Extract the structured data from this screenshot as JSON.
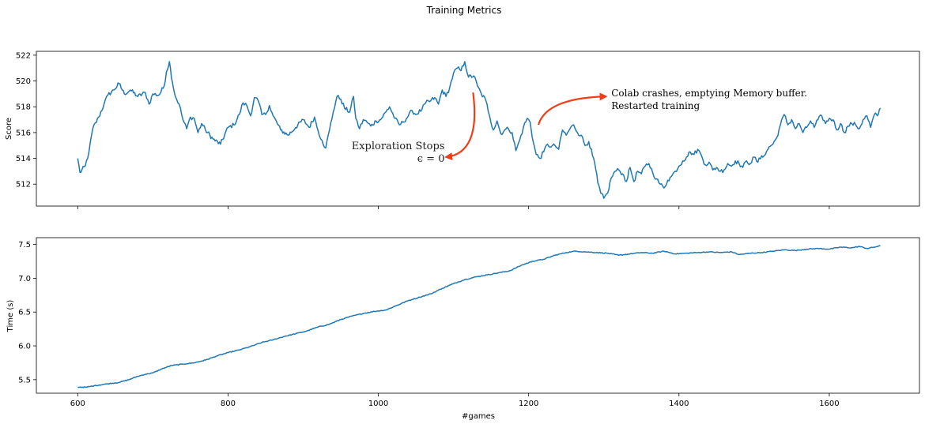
{
  "figure": {
    "title": "Training Metrics"
  },
  "chart_data": [
    {
      "type": "line",
      "name": "score-panel",
      "xlabel": "",
      "ylabel": "Score",
      "xlim": [
        545,
        1720
      ],
      "ylim": [
        510.3,
        522.3
      ],
      "yticks": [
        512,
        514,
        516,
        518,
        520,
        522
      ],
      "xticks": [
        600,
        800,
        1000,
        1200,
        1400,
        1600
      ],
      "show_x_ticklabels": false,
      "grid": false,
      "color": "#1f77b4",
      "x_start": 600,
      "x_end": 1668,
      "keypoints": [
        [
          600,
          514.0
        ],
        [
          603,
          512.9
        ],
        [
          610,
          513.4
        ],
        [
          615,
          514.5
        ],
        [
          620,
          516.3
        ],
        [
          628,
          517.2
        ],
        [
          635,
          518.2
        ],
        [
          640,
          518.9
        ],
        [
          648,
          519.3
        ],
        [
          655,
          519.8
        ],
        [
          662,
          519.0
        ],
        [
          670,
          519.3
        ],
        [
          680,
          518.8
        ],
        [
          690,
          519.1
        ],
        [
          695,
          518.2
        ],
        [
          700,
          519.0
        ],
        [
          708,
          518.9
        ],
        [
          715,
          519.6
        ],
        [
          718,
          520.7
        ],
        [
          722,
          521.5
        ],
        [
          726,
          519.9
        ],
        [
          730,
          518.8
        ],
        [
          735,
          518.2
        ],
        [
          740,
          517.0
        ],
        [
          745,
          516.3
        ],
        [
          750,
          517.2
        ],
        [
          755,
          517.1
        ],
        [
          760,
          516.0
        ],
        [
          765,
          516.7
        ],
        [
          770,
          516.2
        ],
        [
          780,
          515.5
        ],
        [
          790,
          515.1
        ],
        [
          800,
          516.4
        ],
        [
          808,
          516.6
        ],
        [
          815,
          517.4
        ],
        [
          820,
          518.3
        ],
        [
          825,
          518.1
        ],
        [
          830,
          517.3
        ],
        [
          835,
          518.7
        ],
        [
          840,
          518.5
        ],
        [
          845,
          517.4
        ],
        [
          850,
          517.4
        ],
        [
          855,
          518.1
        ],
        [
          860,
          517.3
        ],
        [
          870,
          516.2
        ],
        [
          880,
          515.8
        ],
        [
          890,
          516.4
        ],
        [
          900,
          517.0
        ],
        [
          908,
          516.4
        ],
        [
          915,
          517.2
        ],
        [
          920,
          516.1
        ],
        [
          925,
          515.4
        ],
        [
          930,
          514.8
        ],
        [
          935,
          516.2
        ],
        [
          940,
          517.6
        ],
        [
          945,
          518.8
        ],
        [
          950,
          518.6
        ],
        [
          955,
          517.9
        ],
        [
          962,
          517.6
        ],
        [
          967,
          518.8
        ],
        [
          970,
          517.1
        ],
        [
          975,
          516.3
        ],
        [
          980,
          517.0
        ],
        [
          985,
          516.8
        ],
        [
          990,
          516.5
        ],
        [
          997,
          516.9
        ],
        [
          1003,
          517.0
        ],
        [
          1010,
          517.6
        ],
        [
          1015,
          518.0
        ],
        [
          1022,
          517.1
        ],
        [
          1028,
          516.6
        ],
        [
          1033,
          516.8
        ],
        [
          1040,
          517.3
        ],
        [
          1045,
          517.7
        ],
        [
          1050,
          517.4
        ],
        [
          1058,
          517.8
        ],
        [
          1063,
          518.3
        ],
        [
          1068,
          518.4
        ],
        [
          1075,
          518.7
        ],
        [
          1080,
          518.2
        ],
        [
          1085,
          519.3
        ],
        [
          1090,
          518.8
        ],
        [
          1095,
          519.5
        ],
        [
          1100,
          520.6
        ],
        [
          1105,
          521.0
        ],
        [
          1110,
          520.8
        ],
        [
          1115,
          521.5
        ],
        [
          1120,
          520.3
        ],
        [
          1127,
          520.4
        ],
        [
          1132,
          519.6
        ],
        [
          1137,
          519.0
        ],
        [
          1143,
          518.5
        ],
        [
          1148,
          517.3
        ],
        [
          1153,
          516.2
        ],
        [
          1158,
          516.9
        ],
        [
          1163,
          515.9
        ],
        [
          1168,
          516.2
        ],
        [
          1173,
          516.3
        ],
        [
          1178,
          516.0
        ],
        [
          1183,
          514.6
        ],
        [
          1188,
          515.4
        ],
        [
          1193,
          516.4
        ],
        [
          1198,
          517.1
        ],
        [
          1202,
          516.8
        ],
        [
          1206,
          515.3
        ],
        [
          1210,
          514.3
        ],
        [
          1215,
          514.0
        ],
        [
          1220,
          514.5
        ],
        [
          1225,
          515.1
        ],
        [
          1230,
          514.9
        ],
        [
          1235,
          515.0
        ],
        [
          1240,
          514.7
        ],
        [
          1245,
          516.2
        ],
        [
          1250,
          515.8
        ],
        [
          1255,
          516.3
        ],
        [
          1260,
          516.6
        ],
        [
          1265,
          516.0
        ],
        [
          1270,
          515.8
        ],
        [
          1275,
          515.0
        ],
        [
          1280,
          515.3
        ],
        [
          1285,
          514.2
        ],
        [
          1288,
          513.6
        ],
        [
          1292,
          512.1
        ],
        [
          1296,
          511.3
        ],
        [
          1300,
          510.9
        ],
        [
          1305,
          511.3
        ],
        [
          1310,
          512.5
        ],
        [
          1315,
          513.0
        ],
        [
          1320,
          513.1
        ],
        [
          1325,
          512.8
        ],
        [
          1330,
          512.2
        ],
        [
          1335,
          513.3
        ],
        [
          1340,
          512.2
        ],
        [
          1345,
          513.0
        ],
        [
          1350,
          512.8
        ],
        [
          1355,
          513.4
        ],
        [
          1360,
          513.6
        ],
        [
          1365,
          512.9
        ],
        [
          1370,
          512.4
        ],
        [
          1375,
          512.0
        ],
        [
          1380,
          511.7
        ],
        [
          1385,
          512.3
        ],
        [
          1390,
          512.6
        ],
        [
          1395,
          513.0
        ],
        [
          1400,
          513.4
        ],
        [
          1405,
          513.8
        ],
        [
          1410,
          514.1
        ],
        [
          1415,
          514.5
        ],
        [
          1420,
          514.3
        ],
        [
          1425,
          514.7
        ],
        [
          1430,
          514.2
        ],
        [
          1435,
          513.5
        ],
        [
          1440,
          513.7
        ],
        [
          1445,
          513.1
        ],
        [
          1450,
          513.3
        ],
        [
          1455,
          513.0
        ],
        [
          1460,
          513.1
        ],
        [
          1465,
          513.6
        ],
        [
          1470,
          513.4
        ],
        [
          1475,
          513.8
        ],
        [
          1480,
          513.6
        ],
        [
          1485,
          513.3
        ],
        [
          1490,
          513.8
        ],
        [
          1495,
          513.6
        ],
        [
          1500,
          514.1
        ],
        [
          1505,
          513.7
        ],
        [
          1510,
          514.2
        ],
        [
          1515,
          514.3
        ],
        [
          1520,
          514.9
        ],
        [
          1525,
          515.1
        ],
        [
          1530,
          515.6
        ],
        [
          1535,
          516.6
        ],
        [
          1540,
          517.4
        ],
        [
          1545,
          516.6
        ],
        [
          1550,
          517.0
        ],
        [
          1555,
          516.3
        ],
        [
          1560,
          516.7
        ],
        [
          1565,
          516.0
        ],
        [
          1570,
          516.4
        ],
        [
          1575,
          516.9
        ],
        [
          1580,
          516.4
        ],
        [
          1585,
          517.0
        ],
        [
          1590,
          517.3
        ],
        [
          1595,
          516.7
        ],
        [
          1600,
          517.1
        ],
        [
          1605,
          517.0
        ],
        [
          1610,
          516.2
        ],
        [
          1615,
          516.7
        ],
        [
          1620,
          516.0
        ],
        [
          1625,
          516.5
        ],
        [
          1630,
          516.7
        ],
        [
          1635,
          516.6
        ],
        [
          1640,
          516.3
        ],
        [
          1645,
          517.0
        ],
        [
          1650,
          517.3
        ],
        [
          1655,
          516.4
        ],
        [
          1660,
          517.4
        ],
        [
          1664,
          517.3
        ],
        [
          1668,
          517.9
        ]
      ],
      "annotations": [
        {
          "lines": [
            "Exploration Stops",
            "ϵ  = 0"
          ],
          "text_anchor_xy": [
            1082,
            514.7
          ],
          "arrow_from": [
            1126,
            519.1
          ],
          "arrow_to": [
            1090,
            514.1
          ],
          "color": "#f03c17"
        },
        {
          "lines": [
            "Colab crashes, emptying Memory buffer.",
            "Restarted training"
          ],
          "text_anchor_xy": [
            1310,
            518.8
          ],
          "arrow_from": [
            1213,
            516.6
          ],
          "arrow_to": [
            1303,
            518.8
          ],
          "color": "#f03c17"
        }
      ]
    },
    {
      "type": "line",
      "name": "time-panel",
      "xlabel": "#games",
      "ylabel": "Time (s)",
      "xlim": [
        545,
        1720
      ],
      "ylim": [
        5.3,
        7.6
      ],
      "yticks": [
        5.5,
        6.0,
        6.5,
        7.0,
        7.5
      ],
      "ytick_labels": [
        "5.5",
        "6.0",
        "6.5",
        "7.0",
        "7.5"
      ],
      "xticks": [
        600,
        800,
        1000,
        1200,
        1400,
        1600
      ],
      "xtick_labels": [
        "600",
        "800",
        "1000",
        "1200",
        "1400",
        "1600"
      ],
      "grid": false,
      "color": "#1f77b4",
      "keypoints": [
        [
          600,
          5.39
        ],
        [
          612,
          5.39
        ],
        [
          622,
          5.41
        ],
        [
          640,
          5.44
        ],
        [
          655,
          5.46
        ],
        [
          668,
          5.5
        ],
        [
          680,
          5.55
        ],
        [
          690,
          5.58
        ],
        [
          700,
          5.6
        ],
        [
          712,
          5.66
        ],
        [
          725,
          5.71
        ],
        [
          740,
          5.73
        ],
        [
          755,
          5.75
        ],
        [
          770,
          5.79
        ],
        [
          785,
          5.85
        ],
        [
          800,
          5.9
        ],
        [
          815,
          5.94
        ],
        [
          830,
          5.99
        ],
        [
          845,
          6.05
        ],
        [
          860,
          6.09
        ],
        [
          875,
          6.14
        ],
        [
          890,
          6.18
        ],
        [
          905,
          6.22
        ],
        [
          920,
          6.28
        ],
        [
          935,
          6.32
        ],
        [
          950,
          6.39
        ],
        [
          965,
          6.44
        ],
        [
          980,
          6.48
        ],
        [
          995,
          6.51
        ],
        [
          1010,
          6.53
        ],
        [
          1025,
          6.6
        ],
        [
          1040,
          6.67
        ],
        [
          1055,
          6.72
        ],
        [
          1070,
          6.77
        ],
        [
          1085,
          6.85
        ],
        [
          1100,
          6.92
        ],
        [
          1115,
          6.98
        ],
        [
          1130,
          7.02
        ],
        [
          1145,
          7.05
        ],
        [
          1160,
          7.08
        ],
        [
          1175,
          7.11
        ],
        [
          1190,
          7.19
        ],
        [
          1205,
          7.25
        ],
        [
          1220,
          7.28
        ],
        [
          1235,
          7.34
        ],
        [
          1250,
          7.38
        ],
        [
          1262,
          7.4
        ],
        [
          1275,
          7.39
        ],
        [
          1290,
          7.38
        ],
        [
          1305,
          7.37
        ],
        [
          1320,
          7.34
        ],
        [
          1335,
          7.36
        ],
        [
          1350,
          7.38
        ],
        [
          1365,
          7.37
        ],
        [
          1380,
          7.4
        ],
        [
          1395,
          7.36
        ],
        [
          1410,
          7.37
        ],
        [
          1425,
          7.38
        ],
        [
          1440,
          7.39
        ],
        [
          1455,
          7.38
        ],
        [
          1470,
          7.39
        ],
        [
          1480,
          7.35
        ],
        [
          1495,
          7.37
        ],
        [
          1510,
          7.38
        ],
        [
          1525,
          7.4
        ],
        [
          1540,
          7.42
        ],
        [
          1555,
          7.41
        ],
        [
          1570,
          7.43
        ],
        [
          1585,
          7.44
        ],
        [
          1600,
          7.43
        ],
        [
          1615,
          7.46
        ],
        [
          1630,
          7.45
        ],
        [
          1640,
          7.47
        ],
        [
          1650,
          7.44
        ],
        [
          1660,
          7.46
        ],
        [
          1668,
          7.48
        ]
      ]
    }
  ]
}
